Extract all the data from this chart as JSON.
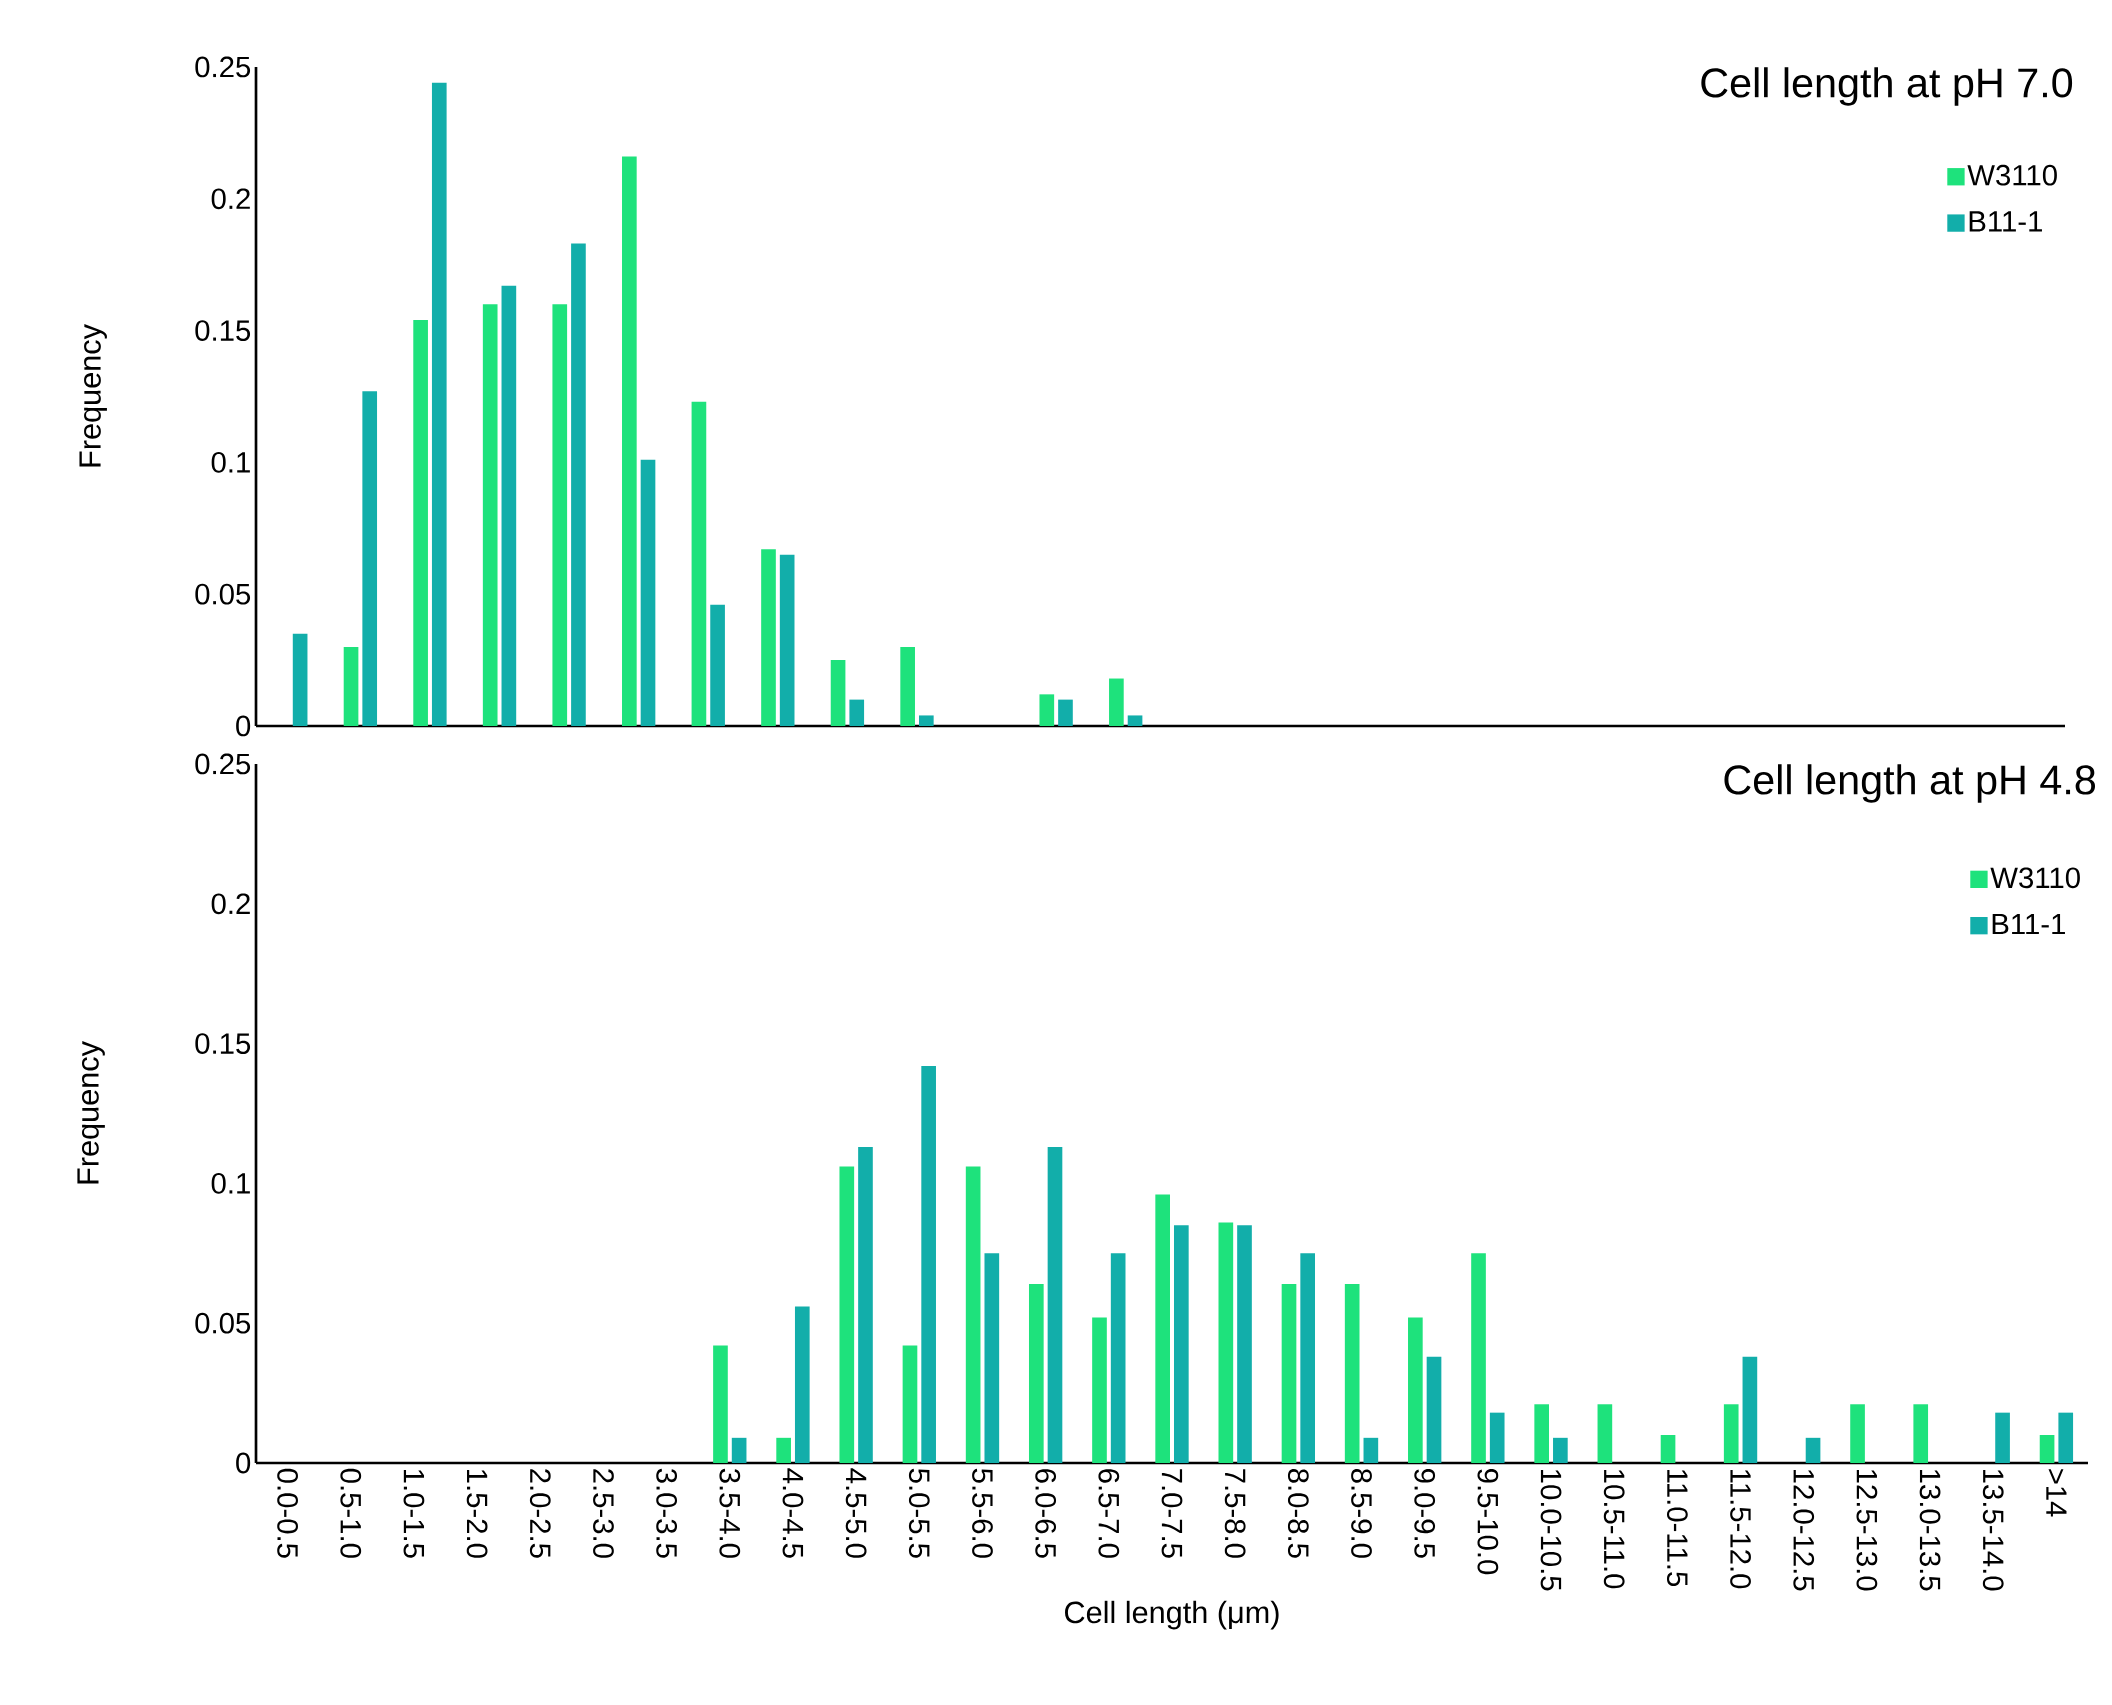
{
  "chart_data": [
    {
      "type": "bar",
      "title": "Cell length at pH 7.0",
      "ylabel": "Frequency",
      "categories": [
        null,
        null,
        null,
        null,
        null,
        null,
        null,
        null,
        null,
        null,
        null,
        null,
        null,
        null,
        null,
        null,
        null,
        null,
        null,
        null,
        null,
        null,
        null,
        null,
        null,
        null
      ],
      "series": [
        {
          "name": "W3110",
          "color": "#1ee27c",
          "values": [
            0,
            0.03,
            0.154,
            0.16,
            0.16,
            0.216,
            0.123,
            0.067,
            0.025,
            0.03,
            0,
            0.012,
            0.018,
            0,
            0,
            0,
            0,
            0,
            0,
            0,
            0,
            0,
            0,
            0,
            0,
            0
          ]
        },
        {
          "name": "B11-1",
          "color": "#12aeaa",
          "values": [
            0.035,
            0.127,
            0.244,
            0.167,
            0.183,
            0.101,
            0.046,
            0.065,
            0.01,
            0.004,
            0,
            0.01,
            0.004,
            0,
            0,
            0,
            0,
            0,
            0,
            0,
            0,
            0,
            0,
            0,
            0,
            0
          ]
        }
      ],
      "ylim": [
        0,
        0.25
      ],
      "yticks": [
        0,
        0.05,
        0.1,
        0.15,
        0.2,
        0.25
      ],
      "tick_labels": "y",
      "legend": "top right"
    },
    {
      "type": "bar",
      "title": "Cell length at pH 4.8",
      "ylabel": "Frequency",
      "xlabel": "Cell length (μm)",
      "categories": [
        "0.0-0.5",
        "0.5-1.0",
        "1.0-1.5",
        "1.5-2.0",
        "2.0-2.5",
        "2.5-3.0",
        "3.0-3.5",
        "3.5-4.0",
        "4.0-4.5",
        "4.5-5.0",
        "5.0-5.5",
        "5.5-6.0",
        "6.0-6.5",
        "6.5-7.0",
        "7.0-7.5",
        "7.5-8.0",
        "8.0-8.5",
        "8.5-9.0",
        "9.0-9.5",
        "9.5-10.0",
        "10.0-10.5",
        "10.5-11.0",
        "11.0-11.5",
        "11.5-12.0",
        "12.0-12.5",
        "12.5-13.0",
        "13.0-13.5",
        "13.5-14.0",
        ">14"
      ],
      "series": [
        {
          "name": "W3110",
          "color": "#1ee27c",
          "values": [
            0,
            0,
            0,
            0,
            0,
            0,
            0,
            0.042,
            0.009,
            0.106,
            0.042,
            0.106,
            0.064,
            0.052,
            0.096,
            0.086,
            0.064,
            0.064,
            0.052,
            0.075,
            0.021,
            0.021,
            0.01,
            0.021,
            0,
            0.021,
            0.021,
            0,
            0.01
          ]
        },
        {
          "name": "B11-1",
          "color": "#12aeaa",
          "values": [
            0,
            0,
            0,
            0,
            0,
            0,
            0,
            0.009,
            0.056,
            0.113,
            0.142,
            0.075,
            0.113,
            0.075,
            0.085,
            0.085,
            0.075,
            0.009,
            0.038,
            0.018,
            0.009,
            0,
            0,
            0.038,
            0.009,
            0,
            0,
            0.018,
            0.018
          ]
        }
      ],
      "ylim": [
        0,
        0.25
      ],
      "yticks": [
        0,
        0.05,
        0.1,
        0.15,
        0.2,
        0.25
      ],
      "legend": "top right"
    }
  ]
}
